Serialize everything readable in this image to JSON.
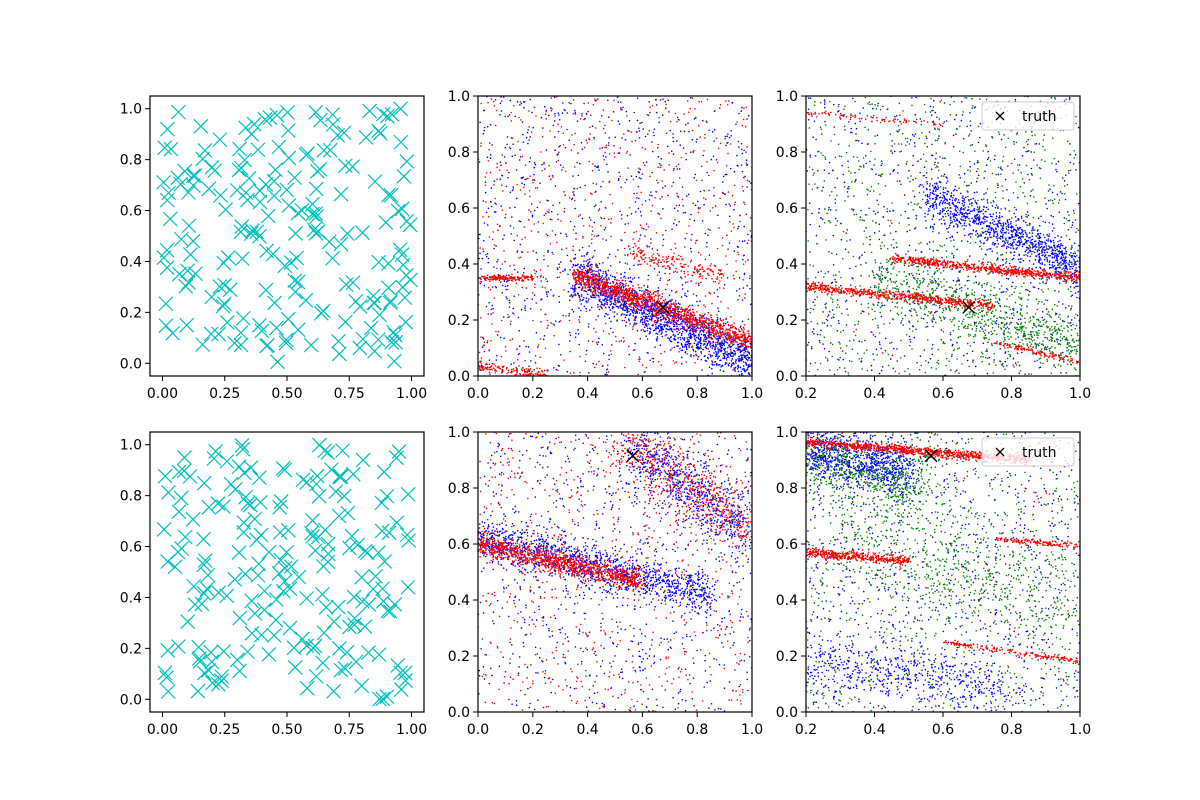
{
  "colors": {
    "cyan": "#00bfbf",
    "blue": "#0000ff",
    "red": "#ff0000",
    "green": "#008000",
    "black": "#000000"
  },
  "chart_data": [
    {
      "type": "scatter",
      "title": "",
      "xlabel": "",
      "ylabel": "",
      "xlim": [
        -0.05,
        1.05
      ],
      "ylim": [
        -0.05,
        1.05
      ],
      "xticks": [
        "0.00",
        "0.25",
        "0.50",
        "0.75",
        "1.00"
      ],
      "yticks": [
        "0.0",
        "0.2",
        "0.4",
        "0.6",
        "0.8",
        "1.0"
      ],
      "marker": "x",
      "series": [
        {
          "name": "points",
          "color": "cyan",
          "count": 200,
          "distribution": "uniform"
        }
      ]
    },
    {
      "type": "scatter",
      "title": "",
      "xlabel": "",
      "ylabel": "",
      "xlim": [
        0.0,
        1.0
      ],
      "ylim": [
        0.0,
        1.0
      ],
      "xticks": [
        "0.0",
        "0.2",
        "0.4",
        "0.6",
        "0.8",
        "1.0"
      ],
      "yticks": [
        "0.0",
        "0.2",
        "0.4",
        "0.6",
        "0.8",
        "1.0"
      ],
      "truth": {
        "x": 0.675,
        "y": 0.245,
        "label": ""
      },
      "series": [
        {
          "name": "blue samples",
          "color": "blue",
          "bands": [
            [
              0.35,
              0.36,
              1.0,
              0.05,
              0.04,
              1600
            ]
          ],
          "noise": 900
        },
        {
          "name": "red samples",
          "color": "red",
          "bands": [
            [
              0.35,
              0.36,
              1.0,
              0.12,
              0.02,
              1200
            ],
            [
              0.0,
              0.35,
              0.2,
              0.35,
              0.005,
              180
            ],
            [
              0.55,
              0.44,
              0.9,
              0.36,
              0.015,
              160
            ],
            [
              0.0,
              0.04,
              0.25,
              0.0,
              0.01,
              160
            ]
          ],
          "noise": 700
        }
      ]
    },
    {
      "type": "scatter",
      "title": "",
      "xlabel": "",
      "ylabel": "",
      "xlim": [
        0.2,
        1.0
      ],
      "ylim": [
        0.0,
        1.0
      ],
      "xticks": [
        "0.2",
        "0.4",
        "0.6",
        "0.8",
        "1.0"
      ],
      "yticks": [
        "0.0",
        "0.2",
        "0.4",
        "0.6",
        "0.8",
        "1.0"
      ],
      "truth": {
        "x": 0.675,
        "y": 0.245,
        "label": "truth"
      },
      "series": [
        {
          "name": "blue samples",
          "color": "blue",
          "bands": [
            [
              0.55,
              0.65,
              1.0,
              0.38,
              0.04,
              1000
            ]
          ],
          "noise": 800
        },
        {
          "name": "green samples",
          "color": "green",
          "bands": [
            [
              0.4,
              0.35,
              1.0,
              0.1,
              0.05,
              700
            ]
          ],
          "noise": 900
        },
        {
          "name": "red samples",
          "color": "red",
          "bands": [
            [
              0.2,
              0.32,
              0.75,
              0.25,
              0.008,
              600
            ],
            [
              0.45,
              0.42,
              1.0,
              0.35,
              0.008,
              700
            ],
            [
              0.2,
              0.94,
              0.6,
              0.9,
              0.005,
              80
            ],
            [
              0.75,
              0.12,
              1.0,
              0.05,
              0.005,
              120
            ]
          ],
          "noise": 30
        }
      ]
    },
    {
      "type": "scatter",
      "title": "",
      "xlabel": "",
      "ylabel": "",
      "xlim": [
        -0.05,
        1.05
      ],
      "ylim": [
        -0.05,
        1.05
      ],
      "xticks": [
        "0.00",
        "0.25",
        "0.50",
        "0.75",
        "1.00"
      ],
      "yticks": [
        "0.0",
        "0.2",
        "0.4",
        "0.6",
        "0.8",
        "1.0"
      ],
      "marker": "x",
      "series": [
        {
          "name": "points",
          "color": "cyan",
          "count": 200,
          "distribution": "uniform"
        }
      ]
    },
    {
      "type": "scatter",
      "title": "",
      "xlabel": "",
      "ylabel": "",
      "xlim": [
        0.0,
        1.0
      ],
      "ylim": [
        0.0,
        1.0
      ],
      "xticks": [
        "0.0",
        "0.2",
        "0.4",
        "0.6",
        "0.8",
        "1.0"
      ],
      "yticks": [
        "0.0",
        "0.2",
        "0.4",
        "0.6",
        "0.8",
        "1.0"
      ],
      "truth": {
        "x": 0.565,
        "y": 0.915,
        "label": ""
      },
      "series": [
        {
          "name": "blue samples",
          "color": "blue",
          "bands": [
            [
              0.0,
              0.62,
              0.85,
              0.42,
              0.04,
              1300
            ],
            [
              0.55,
              0.95,
              1.0,
              0.65,
              0.06,
              700
            ]
          ],
          "noise": 800
        },
        {
          "name": "red samples",
          "color": "red",
          "bands": [
            [
              0.0,
              0.6,
              0.6,
              0.47,
              0.02,
              1100
            ],
            [
              0.5,
              0.98,
              1.0,
              0.65,
              0.06,
              600
            ]
          ],
          "noise": 700
        }
      ]
    },
    {
      "type": "scatter",
      "title": "",
      "xlabel": "",
      "ylabel": "",
      "xlim": [
        0.2,
        1.0
      ],
      "ylim": [
        0.0,
        1.0
      ],
      "xticks": [
        "0.2",
        "0.4",
        "0.6",
        "0.8",
        "1.0"
      ],
      "yticks": [
        "0.0",
        "0.2",
        "0.4",
        "0.6",
        "0.8",
        "1.0"
      ],
      "truth": {
        "x": 0.565,
        "y": 0.915,
        "label": "truth"
      },
      "series": [
        {
          "name": "blue samples",
          "color": "blue",
          "bands": [
            [
              0.2,
              0.93,
              0.5,
              0.86,
              0.05,
              900
            ],
            [
              0.2,
              0.18,
              0.8,
              0.08,
              0.05,
              500
            ]
          ],
          "noise": 900
        },
        {
          "name": "green samples",
          "color": "green",
          "bands": [
            [
              0.2,
              0.9,
              0.55,
              0.8,
              0.06,
              500
            ],
            [
              0.3,
              0.6,
              1.0,
              0.4,
              0.1,
              600
            ]
          ],
          "noise": 700
        },
        {
          "name": "red samples",
          "color": "red",
          "bands": [
            [
              0.2,
              0.965,
              0.85,
              0.9,
              0.008,
              900
            ],
            [
              0.2,
              0.57,
              0.5,
              0.54,
              0.008,
              450
            ],
            [
              0.6,
              0.25,
              1.0,
              0.18,
              0.005,
              180
            ],
            [
              0.75,
              0.62,
              1.0,
              0.59,
              0.005,
              150
            ]
          ],
          "noise": 40
        }
      ]
    }
  ]
}
